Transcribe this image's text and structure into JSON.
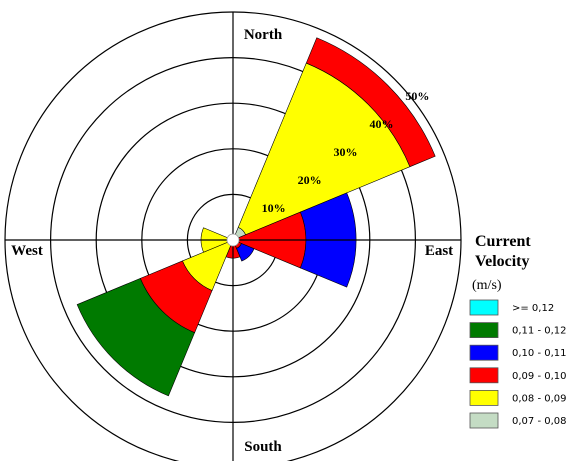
{
  "chart_data": {
    "type": "rose",
    "categories": [
      "North",
      null,
      "East",
      null,
      "South",
      null,
      "West",
      null
    ],
    "series": [
      {
        "name": "0,07 - 0,08",
        "color": "#c4dcc4",
        "values": [
          0,
          3,
          0,
          0,
          0,
          0,
          0,
          0
        ]
      },
      {
        "name": "0,08 - 0,09",
        "color": "#ffff00",
        "values": [
          0,
          39,
          0,
          0,
          0,
          12,
          7,
          0
        ]
      },
      {
        "name": "0,09 - 0,10",
        "color": "#ff0000",
        "values": [
          0,
          6,
          16,
          2,
          4,
          10,
          0,
          0
        ]
      },
      {
        "name": "0,10 - 0,11",
        "color": "#0000ff",
        "values": [
          0,
          0,
          11,
          3,
          0,
          0,
          0,
          0
        ]
      },
      {
        "name": "0,11 - 0,12",
        "color": "#007a00",
        "values": [
          0,
          0,
          0,
          0,
          0,
          15,
          0,
          0
        ]
      },
      {
        "name": ">= 0,12",
        "color": "#00ffff",
        "values": [
          0,
          0,
          0,
          0,
          0,
          0,
          0,
          0
        ]
      }
    ],
    "rlim": [
      0,
      50
    ],
    "rticks": [
      {
        "value": 10,
        "label": "10%"
      },
      {
        "value": 20,
        "label": "20%"
      },
      {
        "value": 30,
        "label": "30%"
      },
      {
        "value": 40,
        "label": "40%"
      },
      {
        "value": 50,
        "label": "50%"
      }
    ],
    "legend_title": "Current Velocity",
    "legend_units": "(m/s)"
  }
}
